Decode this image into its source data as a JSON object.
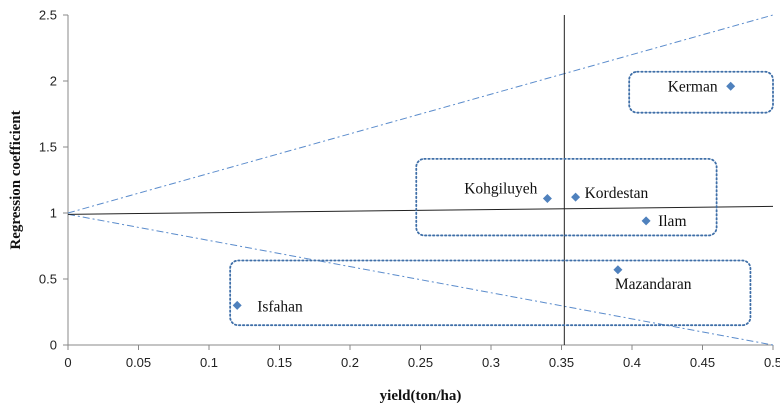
{
  "chart_data": {
    "type": "scatter",
    "xlabel": "yield(ton/ha)",
    "ylabel": "Regression coefficient",
    "xlim": [
      0,
      0.5
    ],
    "ylim": [
      0,
      2.5
    ],
    "x_ticks": [
      "0",
      "0.05",
      "0.1",
      "0.15",
      "0.2",
      "0.25",
      "0.3",
      "0.35",
      "0.4",
      "0.45",
      "0.5"
    ],
    "y_ticks": [
      "0",
      "0.5",
      "1",
      "1.5",
      "2",
      "2.5"
    ],
    "points": [
      {
        "label": "Kerman",
        "x": 0.47,
        "y": 1.96
      },
      {
        "label": "Kohgiluyeh",
        "x": 0.34,
        "y": 1.11
      },
      {
        "label": "Kordestan",
        "x": 0.36,
        "y": 1.12
      },
      {
        "label": "Ilam",
        "x": 0.41,
        "y": 0.94
      },
      {
        "label": "Mazandaran",
        "x": 0.39,
        "y": 0.57
      },
      {
        "label": "Isfahan",
        "x": 0.12,
        "y": 0.3
      }
    ],
    "reference_lines": {
      "vertical_x": 0.352,
      "horizontal": {
        "x1": 0,
        "y1": 0.99,
        "x2": 0.5,
        "y2": 1.05
      },
      "dash_upper": {
        "x1": 0,
        "y1": 1.0,
        "x2": 0.5,
        "y2": 2.5
      },
      "dash_lower": {
        "x1": 0,
        "y1": 0.99,
        "x2": 0.5,
        "y2": 0.0
      }
    },
    "groups": [
      {
        "members": [
          "Kerman"
        ],
        "x_range": [
          0.398,
          0.5
        ],
        "y_range": [
          1.76,
          2.07
        ]
      },
      {
        "members": [
          "Kohgiluyeh",
          "Kordestan",
          "Ilam"
        ],
        "x_range": [
          0.247,
          0.46
        ],
        "y_range": [
          0.83,
          1.41
        ]
      },
      {
        "members": [
          "Mazandaran",
          "Isfahan"
        ],
        "x_range": [
          0.115,
          0.484
        ],
        "y_range": [
          0.15,
          0.64
        ]
      }
    ],
    "colors": {
      "marker": "#4f81bd",
      "dash": "#5b8ccc",
      "group_box": "#3f6fa8",
      "axis": "#888888",
      "ref_line": "#222222"
    },
    "grid": false,
    "legend": "none"
  }
}
